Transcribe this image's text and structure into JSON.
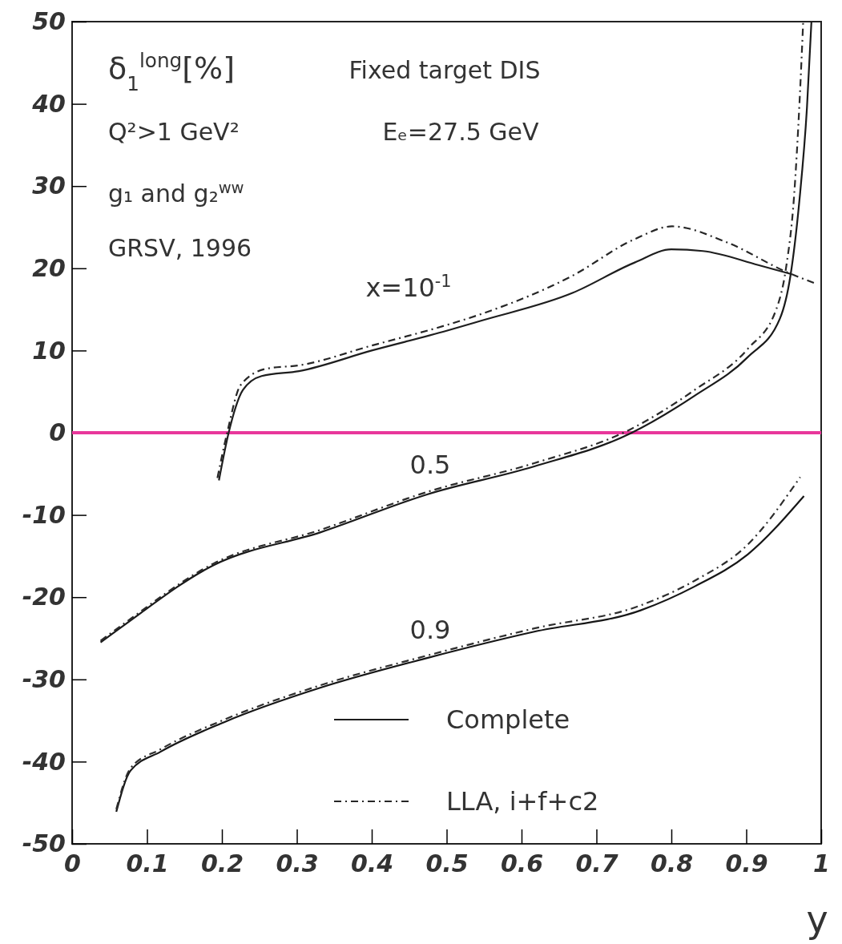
{
  "chart_data": {
    "type": "line",
    "xlabel": "y",
    "xlim": [
      0,
      1
    ],
    "xticks": [
      0,
      0.1,
      0.2,
      0.3,
      0.4,
      0.5,
      0.6,
      0.7,
      0.8,
      0.9,
      1
    ],
    "ylim": [
      -50,
      50
    ],
    "yticks": [
      -50,
      -40,
      -30,
      -20,
      -10,
      0,
      10,
      20,
      30,
      40,
      50
    ],
    "grid": false,
    "legend": "bottom",
    "marker": "none",
    "ref_lines": [
      {
        "axis": "y",
        "value": 0,
        "color": "#e8379b"
      }
    ],
    "series": [
      {
        "name": "Complete",
        "color": "#1e1e1e",
        "line_style": "solid",
        "x": [
          0.196,
          0.209,
          0.228,
          0.253,
          0.303,
          0.4,
          0.5,
          0.545,
          0.668,
          0.751,
          0.8,
          0.842,
          0.916,
          0.96
        ],
        "values": [
          -5.8,
          0,
          5.2,
          6.9,
          7.5,
          10.0,
          12.4,
          13.6,
          17.0,
          20.7,
          22.3,
          22.1,
          20.4,
          19.3
        ]
      },
      {
        "name": "LLA, i+f+c2",
        "color": "#262626",
        "line_style": "dashed",
        "x": [
          0.194,
          0.207,
          0.225,
          0.26,
          0.303,
          0.4,
          0.5,
          0.545,
          0.668,
          0.75,
          0.801,
          0.873,
          0.955,
          0.994
        ],
        "values": [
          -5.5,
          0,
          5.8,
          7.8,
          8.2,
          10.6,
          13.1,
          14.4,
          19.1,
          23.5,
          25.1,
          23.2,
          19.5,
          18.1
        ]
      },
      {
        "color": "#1a1a1a",
        "line_style": "solid",
        "x": [
          0.038,
          0.068,
          0.189,
          0.332,
          0.474,
          0.617,
          0.745,
          0.831,
          0.902,
          0.945,
          0.959,
          0.971,
          0.981,
          0.987
        ],
        "values": [
          -25.5,
          -23.5,
          -16.1,
          -12.1,
          -7.5,
          -4.1,
          -0.1,
          4.5,
          9.2,
          13.9,
          19.1,
          28.3,
          39.5,
          50
        ]
      },
      {
        "color": "#2a2a2a",
        "line_style": "dashed",
        "x": [
          0.038,
          0.068,
          0.189,
          0.332,
          0.474,
          0.617,
          0.745,
          0.831,
          0.902,
          0.94,
          0.953,
          0.964,
          0.971,
          0.976
        ],
        "values": [
          -25.3,
          -23.3,
          -15.9,
          -11.8,
          -7.2,
          -3.7,
          0.4,
          5.2,
          10.2,
          15.0,
          20.0,
          29.0,
          40.0,
          50
        ]
      },
      {
        "color": "#161616",
        "line_style": "solid",
        "x": [
          0.059,
          0.078,
          0.118,
          0.203,
          0.332,
          0.474,
          0.617,
          0.759,
          0.831,
          0.902,
          0.977
        ],
        "values": [
          -46.1,
          -41.1,
          -38.8,
          -35.2,
          -31.0,
          -27.4,
          -24.2,
          -21.6,
          -18.7,
          -14.8,
          -7.7
        ]
      },
      {
        "color": "#2e2e2e",
        "line_style": "dashed",
        "x": [
          0.059,
          0.078,
          0.118,
          0.203,
          0.332,
          0.474,
          0.617,
          0.759,
          0.831,
          0.902,
          0.972
        ],
        "values": [
          -45.8,
          -40.8,
          -38.5,
          -34.9,
          -30.7,
          -27.1,
          -23.8,
          -21.0,
          -18.0,
          -13.6,
          -5.4
        ]
      }
    ],
    "annotations": [
      "δ$_{1}$$^{long}$[%]",
      "Fixed target DIS",
      "Q²>1 GeV²",
      "Eₑ=27.5 GeV",
      "g₁ and g₂$^{ww}$",
      "GRSV, 1996",
      "x=10$^{-1}$",
      "0.5",
      "0.9"
    ]
  }
}
